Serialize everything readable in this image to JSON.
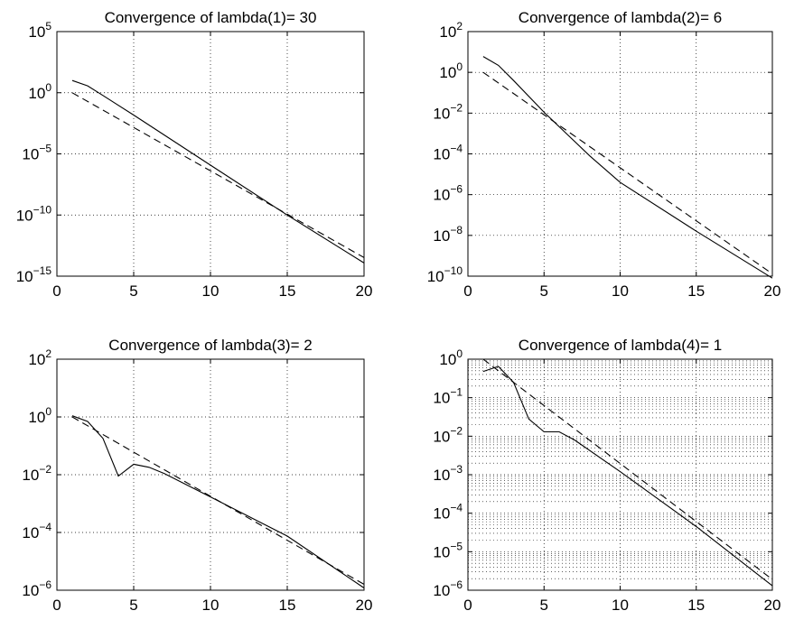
{
  "chart_data": [
    {
      "type": "line",
      "title": "Convergence of lambda(1)= 30",
      "xlabel": "",
      "ylabel": "",
      "xlim": [
        0,
        20
      ],
      "yscale": "log",
      "ylim": [
        1e-15,
        100000.0
      ],
      "xticks": [
        "0",
        "5",
        "10",
        "15",
        "20"
      ],
      "yticks": [
        {
          "base": "10",
          "exp": "5",
          "value": 100000.0
        },
        {
          "base": "10",
          "exp": "0",
          "value": 1
        },
        {
          "base": "10",
          "exp": "−5",
          "value": 1e-05
        },
        {
          "base": "10",
          "exp": "−10",
          "value": 1e-10
        },
        {
          "base": "10",
          "exp": "−15",
          "value": 1e-15
        }
      ],
      "grid": "major",
      "series": [
        {
          "style": "solid",
          "x": [
            1,
            2,
            3,
            5,
            10,
            15,
            20
          ],
          "y": [
            10,
            3.7,
            0.6,
            0.015,
            1.2e-06,
            1e-10,
            1.2e-14
          ]
        },
        {
          "style": "dashed",
          "x": [
            1,
            20
          ],
          "y": [
            1,
            3.3e-14
          ]
        }
      ]
    },
    {
      "type": "line",
      "title": "Convergence of lambda(2)= 6",
      "xlabel": "",
      "ylabel": "",
      "xlim": [
        0,
        20
      ],
      "yscale": "log",
      "ylim": [
        1e-10,
        100
      ],
      "xticks": [
        "0",
        "5",
        "10",
        "15",
        "20"
      ],
      "yticks": [
        {
          "base": "10",
          "exp": "2",
          "value": 100
        },
        {
          "base": "10",
          "exp": "0",
          "value": 1
        },
        {
          "base": "10",
          "exp": "−2",
          "value": 0.01
        },
        {
          "base": "10",
          "exp": "−4",
          "value": 0.0001
        },
        {
          "base": "10",
          "exp": "−6",
          "value": 1e-06
        },
        {
          "base": "10",
          "exp": "−8",
          "value": 1e-08
        },
        {
          "base": "10",
          "exp": "−10",
          "value": 1e-10
        }
      ],
      "grid": "major",
      "series": [
        {
          "style": "solid",
          "x": [
            1,
            2,
            3,
            5,
            8,
            10,
            15,
            20
          ],
          "y": [
            6,
            2.2,
            0.4,
            0.011,
            8e-05,
            4e-06,
            1.6e-08,
            8e-11
          ]
        },
        {
          "style": "dashed",
          "x": [
            1,
            20
          ],
          "y": [
            1,
            1.3e-10
          ]
        }
      ]
    },
    {
      "type": "line",
      "title": "Convergence of lambda(3)= 2",
      "xlabel": "",
      "ylabel": "",
      "xlim": [
        0,
        20
      ],
      "yscale": "log",
      "ylim": [
        1e-06,
        100
      ],
      "xticks": [
        "0",
        "5",
        "10",
        "15",
        "20"
      ],
      "yticks": [
        {
          "base": "10",
          "exp": "2",
          "value": 100
        },
        {
          "base": "10",
          "exp": "0",
          "value": 1
        },
        {
          "base": "10",
          "exp": "−2",
          "value": 0.01
        },
        {
          "base": "10",
          "exp": "−4",
          "value": 0.0001
        },
        {
          "base": "10",
          "exp": "−6",
          "value": 1e-06
        }
      ],
      "grid": "major",
      "series": [
        {
          "style": "solid",
          "x": [
            1,
            2,
            3,
            4,
            5,
            6,
            7,
            10,
            15,
            20
          ],
          "y": [
            1.1,
            0.7,
            0.18,
            0.009,
            0.023,
            0.018,
            0.011,
            0.0017,
            7.5e-05,
            1.2e-06
          ]
        },
        {
          "style": "dashed",
          "x": [
            1,
            20
          ],
          "y": [
            1,
            1.6e-06
          ]
        }
      ]
    },
    {
      "type": "line",
      "title": "Convergence of lambda(4)= 1",
      "xlabel": "",
      "ylabel": "",
      "xlim": [
        0,
        20
      ],
      "yscale": "log",
      "ylim": [
        1e-06,
        1
      ],
      "xticks": [
        "0",
        "5",
        "10",
        "15",
        "20"
      ],
      "yticks": [
        {
          "base": "10",
          "exp": "0",
          "value": 1
        },
        {
          "base": "10",
          "exp": "−1",
          "value": 0.1
        },
        {
          "base": "10",
          "exp": "−2",
          "value": 0.01
        },
        {
          "base": "10",
          "exp": "−3",
          "value": 0.001
        },
        {
          "base": "10",
          "exp": "−4",
          "value": 0.0001
        },
        {
          "base": "10",
          "exp": "−5",
          "value": 1e-05
        },
        {
          "base": "10",
          "exp": "−6",
          "value": 1e-06
        }
      ],
      "grid": "major-and-minor",
      "series": [
        {
          "style": "solid",
          "x": [
            1,
            2,
            3,
            4,
            5,
            6,
            7,
            10,
            15,
            20
          ],
          "y": [
            0.48,
            0.65,
            0.25,
            0.028,
            0.013,
            0.013,
            0.008,
            0.0012,
            4.5e-05,
            1.3e-06
          ]
        },
        {
          "style": "dashed",
          "x": [
            1,
            20
          ],
          "y": [
            1,
            1.9e-06
          ]
        }
      ]
    }
  ]
}
